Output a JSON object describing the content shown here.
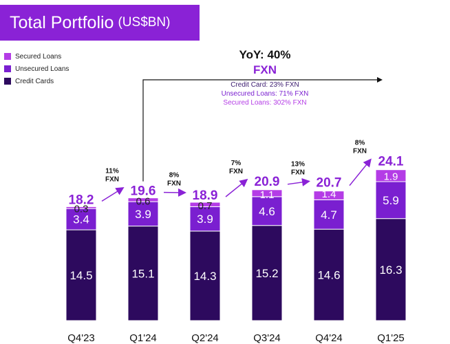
{
  "title": {
    "main": "Total Portfolio",
    "unit": "(US$BN)"
  },
  "legend": [
    {
      "label": "Secured Loans",
      "color": "#b43ce6"
    },
    {
      "label": "Unsecured Loans",
      "color": "#7a1fd0"
    },
    {
      "label": "Credit Cards",
      "color": "#2d0a5e"
    }
  ],
  "yoy": {
    "title": "YoY: 40%",
    "fxn": "FXN",
    "details": [
      {
        "text": "Credit Card: 23% FXN",
        "color": "#3a1a6e"
      },
      {
        "text": "Unsecured Loans: 71% FXN",
        "color": "#7a1fd0"
      },
      {
        "text": "Secured Loans: 302% FXN",
        "color": "#b43ce6"
      }
    ]
  },
  "chart_data": {
    "type": "bar",
    "stacked": true,
    "categories": [
      "Q4'23",
      "Q1'24",
      "Q2'24",
      "Q3'24",
      "Q4'24",
      "Q1'25"
    ],
    "series": [
      {
        "name": "Credit Cards",
        "color": "#2d0a5e",
        "values": [
          14.5,
          15.1,
          14.3,
          15.2,
          14.6,
          16.3
        ]
      },
      {
        "name": "Unsecured Loans",
        "color": "#7a1fd0",
        "values": [
          3.4,
          3.9,
          3.9,
          4.6,
          4.7,
          5.9
        ]
      },
      {
        "name": "Secured Loans",
        "color": "#b43ce6",
        "values": [
          0.3,
          0.6,
          0.7,
          1.1,
          1.4,
          1.9
        ]
      }
    ],
    "totals": [
      18.2,
      19.6,
      18.9,
      20.9,
      20.7,
      24.1
    ],
    "total_color": "#8a22d6",
    "growth_labels": [
      {
        "pct": "11%",
        "unit": "FXN"
      },
      {
        "pct": "8%",
        "unit": "FXN"
      },
      {
        "pct": "7%",
        "unit": "FXN"
      },
      {
        "pct": "13%",
        "unit": "FXN"
      },
      {
        "pct": "8%",
        "unit": "FXN"
      }
    ],
    "ylim": [
      0,
      25
    ],
    "grid": false,
    "legend_position": "top-left"
  }
}
